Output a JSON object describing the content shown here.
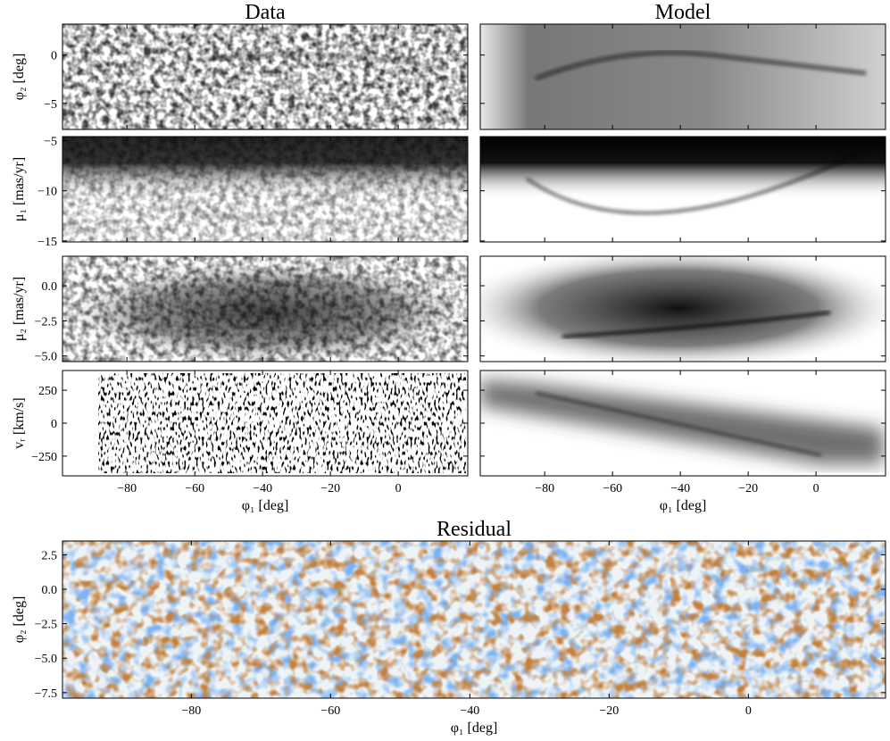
{
  "chart_data": [
    {
      "type": "image",
      "title": "Data",
      "ylabel": "φ₂ [deg]",
      "cmap": "Greys",
      "xlim": [
        -99,
        20.5
      ],
      "ylim": [
        -7.7,
        3.2
      ],
      "xticks": [
        -80,
        -60,
        -40,
        -20,
        0
      ],
      "xticklabels": false,
      "yticks": [
        {
          "value": -5,
          "label": "−5"
        },
        0
      ]
    },
    {
      "type": "image",
      "title": "Model",
      "cmap": "Greys",
      "xlim": [
        -99,
        20.5
      ],
      "ylim": [
        -7.7,
        3.2
      ],
      "xticks": [
        -80,
        -60,
        -40,
        -20,
        0
      ],
      "xticklabels": false,
      "yticks": [
        -5,
        0
      ],
      "yticklabels": false
    },
    {
      "type": "image",
      "ylabel": "μ₁ [mas/yr]",
      "cmap": "Greys",
      "xlim": [
        -99,
        20.5
      ],
      "ylim": [
        -15.1,
        -4.6
      ],
      "xticks": [
        -80,
        -60,
        -40,
        -20,
        0
      ],
      "xticklabels": false,
      "yticks": [
        {
          "value": -15,
          "label": "−15"
        },
        {
          "value": -10,
          "label": "−10"
        },
        {
          "value": -5,
          "label": "−5"
        }
      ]
    },
    {
      "type": "image",
      "cmap": "Greys",
      "xlim": [
        -99,
        20.5
      ],
      "ylim": [
        -15.1,
        -4.6
      ],
      "xticks": [
        -80,
        -60,
        -40,
        -20,
        0
      ],
      "xticklabels": false,
      "yticks": [
        -15,
        -10,
        -5
      ],
      "yticklabels": false
    },
    {
      "type": "image",
      "ylabel": "μ₂ [mas/yr]",
      "cmap": "Greys",
      "xlim": [
        -99,
        20.5
      ],
      "ylim": [
        -5.4,
        2.1
      ],
      "xticks": [
        -80,
        -60,
        -40,
        -20,
        0
      ],
      "xticklabels": false,
      "yticks": [
        {
          "value": -5,
          "label": "−5.0"
        },
        {
          "value": -2.5,
          "label": "−2.5"
        },
        {
          "value": 0,
          "label": "0.0"
        }
      ]
    },
    {
      "type": "image",
      "cmap": "Greys",
      "xlim": [
        -99,
        20.5
      ],
      "ylim": [
        -5.4,
        2.1
      ],
      "xticks": [
        -80,
        -60,
        -40,
        -20,
        0
      ],
      "xticklabels": false,
      "yticks": [
        -5,
        -2.5,
        0
      ],
      "yticklabels": false
    },
    {
      "type": "image",
      "ylabel": "vᵣ [km/s]",
      "xlabel": "φ₁ [deg]",
      "cmap": "Greys",
      "xlim": [
        -99,
        20.5
      ],
      "ylim": [
        -400,
        400
      ],
      "xticks": [
        {
          "value": -80,
          "label": "−80"
        },
        {
          "value": -60,
          "label": "−60"
        },
        {
          "value": -40,
          "label": "−40"
        },
        {
          "value": -20,
          "label": "−20"
        },
        0
      ],
      "yticks": [
        {
          "value": -250,
          "label": "−250"
        },
        0,
        250
      ]
    },
    {
      "type": "image",
      "xlabel": "φ₁ [deg]",
      "cmap": "Greys",
      "xlim": [
        -99,
        20.5
      ],
      "ylim": [
        -400,
        400
      ],
      "xticks": [
        {
          "value": -80,
          "label": "−80"
        },
        {
          "value": -60,
          "label": "−60"
        },
        {
          "value": -40,
          "label": "−40"
        },
        {
          "value": -20,
          "label": "−20"
        },
        0
      ],
      "yticks": [
        -250,
        0,
        250
      ],
      "yticklabels": false
    },
    {
      "type": "image",
      "title": "Residual",
      "xlabel": "φ₁ [deg]",
      "ylabel": "φ₂ [deg]",
      "cmap": "diverging",
      "xlim": [
        -98.5,
        19.7
      ],
      "ylim": [
        -7.9,
        3.5
      ],
      "xticks": [
        {
          "value": -80,
          "label": "−80"
        },
        {
          "value": -60,
          "label": "−60"
        },
        {
          "value": -40,
          "label": "−40"
        },
        {
          "value": -20,
          "label": "−20"
        },
        0
      ],
      "yticks": [
        {
          "value": -7.5,
          "label": "−7.5"
        },
        {
          "value": -5,
          "label": "−5.0"
        },
        {
          "value": -2.5,
          "label": "−2.5"
        },
        {
          "value": 0,
          "label": "0.0"
        },
        {
          "value": 2.5,
          "label": "2.5"
        }
      ]
    }
  ]
}
